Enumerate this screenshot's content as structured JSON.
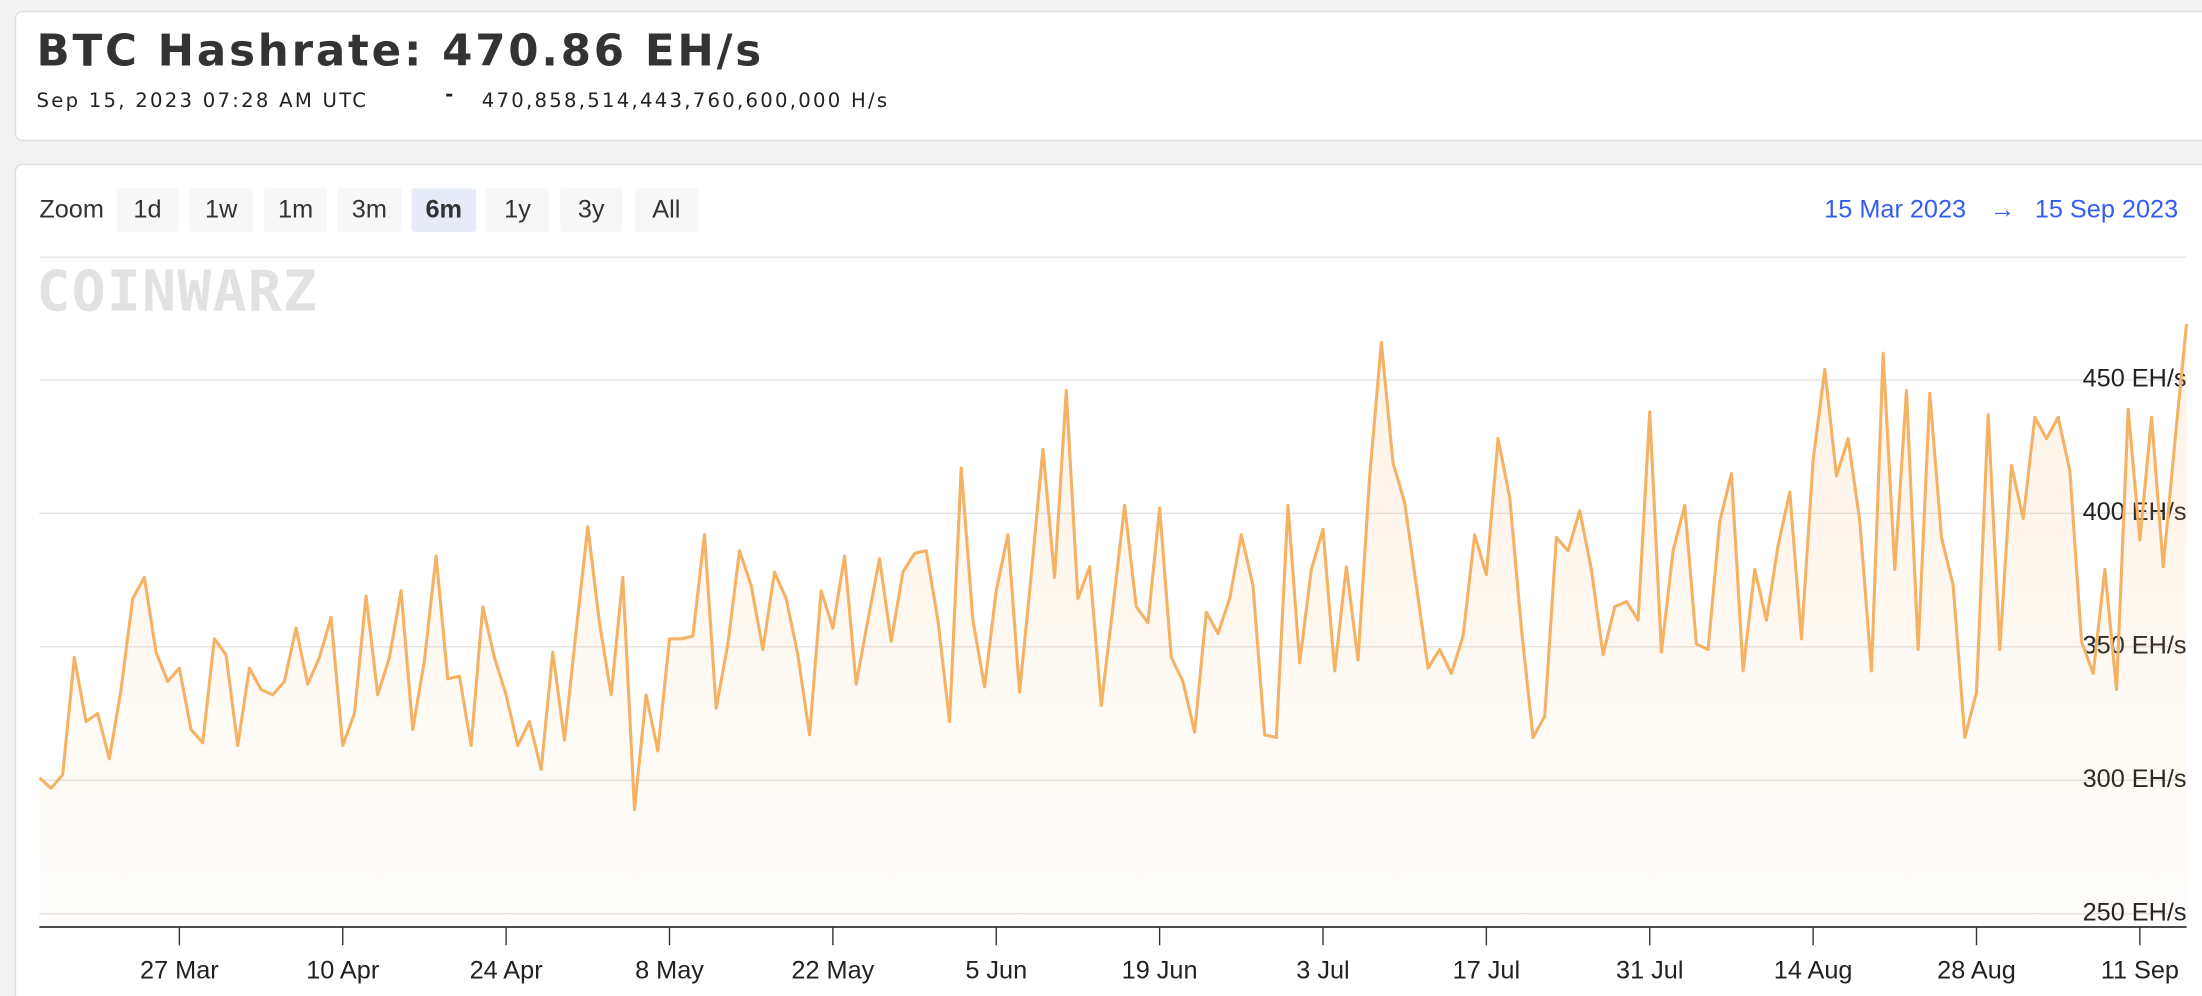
{
  "header": {
    "title": "BTC Hashrate: 470.86 EH/s",
    "timestamp": "Sep 15, 2023 07:28 AM UTC",
    "separator": "-",
    "raw": "470,858,514,443,760,600,000 H/s"
  },
  "zoom": {
    "label": "Zoom",
    "buttons": [
      "1d",
      "1w",
      "1m",
      "3m",
      "6m",
      "1y",
      "3y",
      "All"
    ],
    "selected": "6m"
  },
  "range": {
    "from": "15 Mar 2023",
    "arrow": "→",
    "to": "15 Sep 2023"
  },
  "watermark": "COINWARZ",
  "chart_data": {
    "type": "line",
    "color": "#f5b265",
    "grid": true,
    "x": [
      "15 Mar",
      "16 Mar",
      "17 Mar",
      "18 Mar",
      "19 Mar",
      "20 Mar",
      "21 Mar",
      "22 Mar",
      "23 Mar",
      "24 Mar",
      "25 Mar",
      "26 Mar",
      "27 Mar",
      "28 Mar",
      "29 Mar",
      "30 Mar",
      "31 Mar",
      "1 Apr",
      "2 Apr",
      "3 Apr",
      "4 Apr",
      "5 Apr",
      "6 Apr",
      "7 Apr",
      "8 Apr",
      "9 Apr",
      "10 Apr",
      "11 Apr",
      "12 Apr",
      "13 Apr",
      "14 Apr",
      "15 Apr",
      "16 Apr",
      "17 Apr",
      "18 Apr",
      "19 Apr",
      "20 Apr",
      "21 Apr",
      "22 Apr",
      "23 Apr",
      "24 Apr",
      "25 Apr",
      "26 Apr",
      "27 Apr",
      "28 Apr",
      "29 Apr",
      "30 Apr",
      "1 May",
      "2 May",
      "3 May",
      "4 May",
      "5 May",
      "6 May",
      "7 May",
      "8 May",
      "9 May",
      "10 May",
      "11 May",
      "12 May",
      "13 May",
      "14 May",
      "15 May",
      "16 May",
      "17 May",
      "18 May",
      "19 May",
      "20 May",
      "21 May",
      "22 May",
      "23 May",
      "24 May",
      "25 May",
      "26 May",
      "27 May",
      "28 May",
      "29 May",
      "30 May",
      "31 May",
      "1 Jun",
      "2 Jun",
      "3 Jun",
      "4 Jun",
      "5 Jun",
      "6 Jun",
      "7 Jun",
      "8 Jun",
      "9 Jun",
      "10 Jun",
      "11 Jun",
      "12 Jun",
      "13 Jun",
      "14 Jun",
      "15 Jun",
      "16 Jun",
      "17 Jun",
      "18 Jun",
      "19 Jun",
      "20 Jun",
      "21 Jun",
      "22 Jun",
      "23 Jun",
      "24 Jun",
      "25 Jun",
      "26 Jun",
      "27 Jun",
      "28 Jun",
      "29 Jun",
      "30 Jun",
      "1 Jul",
      "2 Jul",
      "3 Jul",
      "4 Jul",
      "5 Jul",
      "6 Jul",
      "7 Jul",
      "8 Jul",
      "9 Jul",
      "10 Jul",
      "11 Jul",
      "12 Jul",
      "13 Jul",
      "14 Jul",
      "15 Jul",
      "16 Jul",
      "17 Jul",
      "18 Jul",
      "19 Jul",
      "20 Jul",
      "21 Jul",
      "22 Jul",
      "23 Jul",
      "24 Jul",
      "25 Jul",
      "26 Jul",
      "27 Jul",
      "28 Jul",
      "29 Jul",
      "30 Jul",
      "31 Jul",
      "1 Aug",
      "2 Aug",
      "3 Aug",
      "4 Aug",
      "5 Aug",
      "6 Aug",
      "7 Aug",
      "8 Aug",
      "9 Aug",
      "10 Aug",
      "11 Aug",
      "12 Aug",
      "13 Aug",
      "14 Aug",
      "15 Aug",
      "16 Aug",
      "17 Aug",
      "18 Aug",
      "19 Aug",
      "20 Aug",
      "21 Aug",
      "22 Aug",
      "23 Aug",
      "24 Aug",
      "25 Aug",
      "26 Aug",
      "27 Aug",
      "28 Aug",
      "29 Aug",
      "30 Aug",
      "31 Aug",
      "1 Sep",
      "2 Sep",
      "3 Sep",
      "4 Sep",
      "5 Sep",
      "6 Sep",
      "7 Sep",
      "8 Sep",
      "9 Sep",
      "10 Sep",
      "11 Sep",
      "12 Sep",
      "13 Sep",
      "14 Sep",
      "15 Sep"
    ],
    "values": [
      301,
      297,
      302,
      346,
      322,
      325,
      308,
      334,
      368,
      376,
      348,
      337,
      342,
      319,
      314,
      353,
      347,
      313,
      342,
      334,
      332,
      337,
      357,
      336,
      346,
      361,
      313,
      325,
      369,
      332,
      346,
      371,
      319,
      345,
      384,
      338,
      339,
      313,
      365,
      346,
      332,
      313,
      322,
      304,
      348,
      315,
      356,
      395,
      359,
      332,
      376,
      289,
      332,
      311,
      353,
      353,
      354,
      392,
      327,
      351,
      386,
      373,
      349,
      378,
      368,
      347,
      317,
      371,
      357,
      384,
      336,
      360,
      383,
      352,
      378,
      385,
      386,
      360,
      322,
      417,
      360,
      335,
      371,
      392,
      333,
      377,
      424,
      376,
      446,
      368,
      380,
      328,
      365,
      403,
      365,
      359,
      402,
      346,
      337,
      318,
      363,
      355,
      368,
      392,
      373,
      317,
      316,
      403,
      344,
      379,
      394,
      341,
      380,
      345,
      414,
      464,
      419,
      404,
      373,
      342,
      349,
      340,
      354,
      392,
      377,
      428,
      406,
      357,
      316,
      324,
      391,
      386,
      401,
      379,
      347,
      365,
      367,
      360,
      438,
      348,
      386,
      403,
      351,
      349,
      397,
      415,
      341,
      379,
      360,
      388,
      408,
      353,
      420,
      454,
      414,
      428,
      397,
      341,
      460,
      379,
      446,
      349,
      445,
      391,
      373,
      316,
      333,
      437,
      349,
      418,
      398,
      436,
      428,
      436,
      416,
      352,
      340,
      379,
      334,
      439,
      390,
      436,
      380,
      427,
      471
    ],
    "ylim": [
      245,
      496
    ],
    "yticks": [
      {
        "value": 250,
        "label": "250 EH/s"
      },
      {
        "value": 300,
        "label": "300 EH/s"
      },
      {
        "value": 350,
        "label": "350 EH/s"
      },
      {
        "value": 400,
        "label": "400 EH/s"
      },
      {
        "value": 450,
        "label": "450 EH/s"
      }
    ],
    "xticks": [
      "27 Mar",
      "10 Apr",
      "24 Apr",
      "8 May",
      "22 May",
      "5 Jun",
      "19 Jun",
      "3 Jul",
      "17 Jul",
      "31 Jul",
      "14 Aug",
      "28 Aug",
      "11 Sep"
    ]
  }
}
